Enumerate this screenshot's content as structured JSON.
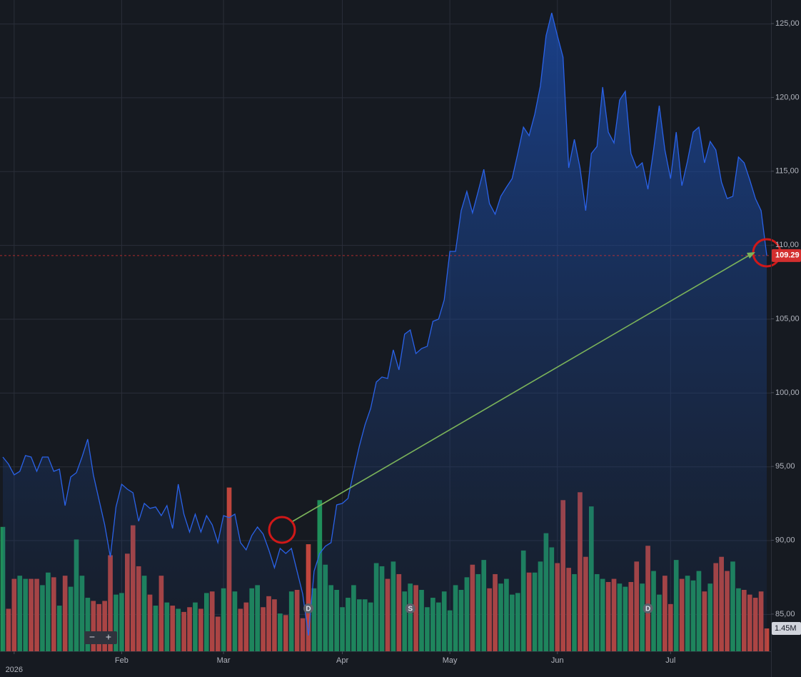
{
  "chart_data": {
    "type": "line",
    "color": "#2a62e8",
    "categories": [
      null,
      null,
      "2026",
      null,
      null,
      null,
      null,
      null,
      null,
      null,
      null,
      null,
      null,
      null,
      null,
      null,
      null,
      null,
      null,
      null,
      null,
      "Feb",
      null,
      null,
      null,
      null,
      null,
      null,
      null,
      null,
      null,
      null,
      null,
      null,
      null,
      null,
      null,
      null,
      null,
      "Mar",
      null,
      null,
      null,
      null,
      null,
      null,
      null,
      null,
      null,
      null,
      null,
      null,
      null,
      null,
      null,
      null,
      null,
      null,
      null,
      null,
      "Apr",
      null,
      null,
      null,
      null,
      null,
      null,
      null,
      null,
      null,
      null,
      null,
      null,
      null,
      null,
      null,
      null,
      null,
      null,
      "May",
      null,
      null,
      null,
      null,
      null,
      null,
      null,
      null,
      null,
      null,
      null,
      null,
      null,
      null,
      null,
      null,
      null,
      null,
      "Jun",
      null,
      null,
      null,
      null,
      null,
      null,
      null,
      null,
      null,
      null,
      null,
      null,
      null,
      null,
      null,
      null,
      null,
      null,
      null,
      "Jul",
      null,
      null,
      null,
      null,
      null,
      null,
      null,
      null,
      null,
      null,
      null,
      null,
      null,
      null,
      null,
      null,
      null
    ],
    "values": [
      95.64,
      95.16,
      94.43,
      94.67,
      95.74,
      95.64,
      94.67,
      95.64,
      95.64,
      94.67,
      94.82,
      92.35,
      94.29,
      94.58,
      95.64,
      96.85,
      94.43,
      92.74,
      91.05,
      88.87,
      92.26,
      93.8,
      93.46,
      93.22,
      91.29,
      92.5,
      92.16,
      92.26,
      91.67,
      92.35,
      90.8,
      93.8,
      91.77,
      90.56,
      91.77,
      90.56,
      91.67,
      91.05,
      89.84,
      91.67,
      91.53,
      91.77,
      89.84,
      89.35,
      90.32,
      90.9,
      90.42,
      89.35,
      88.14,
      89.45,
      89.11,
      89.45,
      87.9,
      86.35,
      83.55,
      87.9,
      89.11,
      89.6,
      89.84,
      92.4,
      92.5,
      92.84,
      94.67,
      96.37,
      97.82,
      98.93,
      100.72,
      101.06,
      100.96,
      102.9,
      101.54,
      103.96,
      104.25,
      102.65,
      102.99,
      103.14,
      104.83,
      104.98,
      106.28,
      109.57,
      109.57,
      112.33,
      113.63,
      112.18,
      113.63,
      115.13,
      112.81,
      112.09,
      113.3,
      113.92,
      114.5,
      116.2,
      117.99,
      117.41,
      118.86,
      120.79,
      124.18,
      125.73,
      124.18,
      122.73,
      115.23,
      117.16,
      115.23,
      112.33,
      116.2,
      116.68,
      120.7,
      117.65,
      116.92,
      119.82,
      120.41,
      116.2,
      115.23,
      115.57,
      113.78,
      116.44,
      119.44,
      116.44,
      114.5,
      117.65,
      114.02,
      115.71,
      117.65,
      117.99,
      115.57,
      117.02,
      116.44,
      114.26,
      113.15,
      113.3,
      115.96,
      115.57,
      114.41,
      113.15,
      112.33,
      109.29
    ],
    "last_value_label": "109.29",
    "last_value_color": "#d32f2f",
    "ylim": [
      82.48,
      126.6
    ],
    "yticks": [
      {
        "value": 85,
        "label": "85,00"
      },
      {
        "value": 90,
        "label": "90,00"
      },
      {
        "value": 95,
        "label": "95,00"
      },
      {
        "value": 100,
        "label": "100,00"
      },
      {
        "value": 105,
        "label": "105,00"
      },
      {
        "value": 110,
        "label": "110,00"
      },
      {
        "value": 115,
        "label": "115,00"
      },
      {
        "value": 120,
        "label": "120,00"
      },
      {
        "value": 125,
        "label": "125,00"
      }
    ],
    "grid": true,
    "volume_values": [
      7.9,
      2.7,
      4.6,
      4.8,
      4.6,
      4.6,
      4.6,
      4.2,
      5.0,
      4.7,
      2.9,
      4.8,
      4.1,
      7.1,
      4.8,
      3.4,
      3.2,
      3.0,
      3.2,
      6.1,
      3.6,
      3.7,
      6.2,
      8.0,
      5.4,
      4.8,
      3.6,
      2.9,
      4.8,
      3.1,
      2.9,
      2.7,
      2.5,
      2.8,
      3.1,
      2.7,
      3.7,
      3.8,
      2.2,
      4.0,
      10.4,
      3.8,
      2.7,
      3.1,
      4.0,
      4.2,
      2.8,
      3.5,
      3.3,
      2.4,
      2.3,
      3.8,
      3.9,
      2.1,
      6.8,
      4.0,
      9.6,
      5.5,
      4.2,
      3.9,
      2.8,
      3.4,
      4.2,
      3.3,
      3.3,
      3.1,
      5.6,
      5.4,
      4.6,
      5.7,
      4.9,
      3.8,
      4.3,
      4.2,
      3.9,
      2.8,
      3.4,
      3.1,
      3.8,
      2.6,
      4.2,
      3.9,
      4.7,
      5.5,
      4.9,
      5.8,
      4.0,
      4.9,
      4.3,
      4.6,
      3.6,
      3.7,
      6.4,
      5.0,
      5.0,
      5.7,
      7.5,
      6.6,
      5.6,
      9.6,
      5.3,
      4.9,
      10.1,
      6.0,
      9.2,
      4.9,
      4.6,
      4.4,
      4.6,
      4.3,
      4.1,
      4.4,
      5.7,
      4.3,
      6.7,
      5.1,
      3.6,
      4.8,
      3.0,
      5.8,
      4.6,
      4.8,
      4.5,
      5.1,
      3.8,
      4.3,
      5.6,
      6.0,
      5.1,
      5.7,
      4.0,
      3.9,
      3.6,
      3.4,
      3.8,
      1.45
    ],
    "volume_ylim": [
      0,
      20
    ],
    "volume_last_label": "1.45M",
    "up_color": "#1f8f5a",
    "down_color": "#c0463d",
    "events": [
      {
        "label": "D",
        "at": 54
      },
      {
        "label": "S",
        "at": 72
      },
      {
        "label": "D",
        "at": 114
      }
    ],
    "zoom_controls": [
      "−",
      "+"
    ]
  }
}
